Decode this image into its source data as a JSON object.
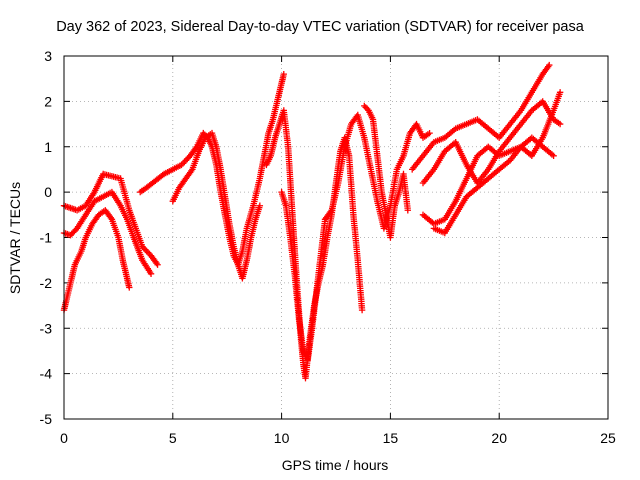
{
  "chart_data": {
    "type": "scatter",
    "title": "Day 362 of 2023, Sidereal Day-to-day VTEC variation (SDTVAR) for receiver pasa",
    "xlabel": "GPS time / hours",
    "ylabel": "SDTVAR / TECUs",
    "xlim": [
      0,
      25
    ],
    "ylim": [
      -5,
      3
    ],
    "xticks": [
      "0",
      "5",
      "10",
      "15",
      "20",
      "25"
    ],
    "yticks": [
      "-5",
      "-4",
      "-3",
      "-2",
      "-1",
      "0",
      "1",
      "2",
      "3"
    ],
    "grid": true,
    "marker": "plus",
    "color": "#ff0000",
    "series": [
      {
        "x": [
          0.0,
          0.3,
          0.6,
          1.0,
          1.4,
          1.8,
          2.2,
          2.6,
          3.0,
          3.3,
          3.6,
          4.0,
          4.3
        ],
        "y": [
          -0.3,
          -0.35,
          -0.4,
          -0.3,
          0.0,
          0.4,
          0.35,
          0.3,
          -0.4,
          -0.8,
          -1.2,
          -1.4,
          -1.6
        ]
      },
      {
        "x": [
          0.0,
          0.3,
          0.6,
          1.0,
          1.4,
          1.8,
          2.2,
          2.6,
          2.9,
          3.2,
          3.6,
          4.0
        ],
        "y": [
          -0.9,
          -0.95,
          -0.8,
          -0.5,
          -0.2,
          -0.1,
          0.0,
          -0.3,
          -0.6,
          -1.0,
          -1.5,
          -1.8
        ]
      },
      {
        "x": [
          0.0,
          0.1,
          0.3,
          0.5,
          0.8,
          1.0,
          1.3,
          1.6,
          1.9,
          2.2,
          2.5,
          2.7,
          2.9,
          3.0
        ],
        "y": [
          -2.6,
          -2.4,
          -2.0,
          -1.6,
          -1.3,
          -1.0,
          -0.7,
          -0.5,
          -0.4,
          -0.6,
          -1.0,
          -1.5,
          -1.9,
          -2.1
        ]
      },
      {
        "x": [
          3.5,
          3.8,
          4.2,
          4.6,
          5.0,
          5.4,
          5.8,
          6.1,
          6.4,
          6.6,
          6.8,
          7.0,
          7.2,
          7.4,
          7.6,
          7.8,
          8.0,
          8.2,
          8.4,
          8.7,
          9.0,
          9.2,
          9.4,
          9.6,
          9.8,
          10.0,
          10.1
        ],
        "y": [
          0.0,
          0.1,
          0.25,
          0.4,
          0.5,
          0.6,
          0.8,
          1.0,
          1.3,
          1.2,
          1.0,
          0.6,
          0.0,
          -0.5,
          -1.0,
          -1.4,
          -1.6,
          -1.3,
          -0.8,
          -0.3,
          0.3,
          0.8,
          1.3,
          1.6,
          2.0,
          2.4,
          2.6
        ]
      },
      {
        "x": [
          5.0,
          5.3,
          5.6,
          5.9,
          6.2,
          6.5,
          6.8,
          7.0,
          7.2,
          7.4,
          7.6,
          7.8,
          8.0,
          8.2,
          8.4,
          8.6,
          8.8,
          9.0
        ],
        "y": [
          -0.2,
          0.1,
          0.3,
          0.5,
          0.9,
          1.2,
          1.3,
          1.0,
          0.5,
          -0.1,
          -0.7,
          -1.2,
          -1.6,
          -1.9,
          -1.5,
          -1.0,
          -0.6,
          -0.3
        ]
      },
      {
        "x": [
          9.3,
          9.5,
          9.7,
          9.9,
          10.1,
          10.3,
          10.5,
          10.7,
          10.9,
          11.0,
          11.1,
          11.3,
          11.5,
          11.7,
          11.9,
          12.1,
          12.3,
          12.5,
          12.7,
          12.9,
          13.1,
          13.3,
          13.5,
          13.7
        ],
        "y": [
          0.6,
          0.8,
          1.2,
          1.5,
          1.8,
          1.0,
          -0.5,
          -2.0,
          -3.3,
          -3.8,
          -4.1,
          -3.2,
          -2.5,
          -2.0,
          -1.6,
          -1.0,
          -0.5,
          0.2,
          0.9,
          1.2,
          0.8,
          -0.5,
          -1.5,
          -2.6
        ]
      },
      {
        "x": [
          10.0,
          10.2,
          10.4,
          10.6,
          10.8,
          11.0,
          11.2,
          11.4,
          11.6,
          11.8,
          12.0
        ],
        "y": [
          0.0,
          -0.3,
          -1.0,
          -1.8,
          -2.8,
          -3.5,
          -3.7,
          -3.0,
          -2.2,
          -1.4,
          -0.6
        ]
      },
      {
        "x": [
          12.0,
          12.3,
          12.6,
          12.9,
          13.2,
          13.5,
          13.8,
          14.1,
          14.4,
          14.7,
          15.0,
          15.3,
          15.6,
          15.9,
          16.2,
          16.5,
          16.8
        ],
        "y": [
          -0.6,
          -0.4,
          0.2,
          1.0,
          1.5,
          1.7,
          1.2,
          0.5,
          -0.2,
          -0.8,
          -0.3,
          0.5,
          0.8,
          1.3,
          1.5,
          1.2,
          1.3
        ]
      },
      {
        "x": [
          13.8,
          14.0,
          14.2,
          14.4,
          14.6,
          14.8,
          15.0,
          15.2,
          15.4,
          15.6,
          15.8
        ],
        "y": [
          1.9,
          1.8,
          1.6,
          0.8,
          0.0,
          -0.5,
          -1.0,
          -0.3,
          0.0,
          0.4,
          -0.4
        ]
      },
      {
        "x": [
          16.0,
          16.5,
          17.0,
          17.5,
          18.0,
          18.5,
          19.0,
          19.5,
          20.0,
          20.5,
          21.0,
          21.5,
          22.0,
          22.3
        ],
        "y": [
          0.5,
          0.8,
          1.1,
          1.2,
          1.4,
          1.5,
          1.6,
          1.4,
          1.2,
          1.5,
          1.8,
          2.2,
          2.6,
          2.8
        ]
      },
      {
        "x": [
          16.5,
          17.0,
          17.5,
          18.0,
          18.5,
          19.0,
          19.5,
          20.0,
          20.5,
          21.0,
          21.5,
          22.0,
          22.5,
          22.8
        ],
        "y": [
          -0.5,
          -0.7,
          -0.6,
          -0.2,
          0.3,
          0.8,
          1.0,
          0.8,
          0.9,
          1.0,
          0.8,
          1.2,
          1.8,
          2.2
        ]
      },
      {
        "x": [
          16.5,
          17.0,
          17.5,
          18.0,
          18.5,
          19.0,
          19.5,
          20.0,
          20.5,
          21.0,
          21.5,
          22.0,
          22.5,
          22.8
        ],
        "y": [
          0.2,
          0.5,
          0.9,
          1.1,
          0.6,
          0.2,
          0.5,
          0.9,
          1.2,
          1.5,
          1.8,
          2.0,
          1.6,
          1.5
        ]
      },
      {
        "x": [
          17.0,
          17.5,
          18.0,
          18.5,
          19.0,
          19.5,
          20.0,
          20.5,
          21.0,
          21.5,
          22.0,
          22.5
        ],
        "y": [
          -0.8,
          -0.9,
          -0.5,
          -0.1,
          0.1,
          0.3,
          0.5,
          0.7,
          1.0,
          1.2,
          1.0,
          0.8
        ]
      }
    ]
  }
}
